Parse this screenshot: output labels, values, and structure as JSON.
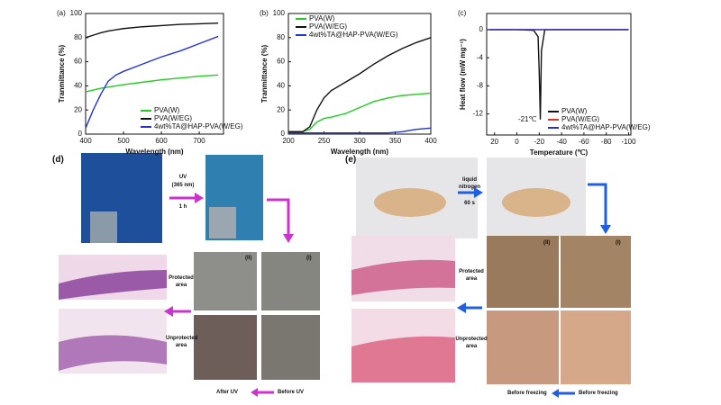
{
  "chart_data": [
    {
      "type": "line",
      "label": "(a)",
      "xlabel": "Wavelength (nm)",
      "ylabel": "Tranmittance (%)",
      "x": [
        400,
        420,
        440,
        460,
        480,
        500,
        550,
        600,
        650,
        700,
        750
      ],
      "series": [
        {
          "name": "PVA(W)",
          "color": "#22cc22",
          "values": [
            35,
            36.5,
            38,
            39,
            40,
            41,
            43,
            45,
            46.5,
            48,
            49
          ]
        },
        {
          "name": "PVA(W/EG)",
          "color": "#111111",
          "values": [
            80,
            82,
            84,
            85.5,
            86.5,
            87.5,
            89,
            90,
            91,
            91.5,
            92
          ]
        },
        {
          "name": "4wt%TA@HAP-PVA(W/EG)",
          "color": "#2233cc",
          "values": [
            5,
            20,
            33,
            44,
            49,
            52,
            58,
            64,
            69,
            75,
            81
          ]
        }
      ],
      "xlim": [
        400,
        764
      ],
      "ylim": [
        0,
        100
      ],
      "xticks": [
        400,
        500,
        600,
        700
      ],
      "yticks": [
        0,
        20,
        40,
        60,
        80,
        100
      ],
      "legend": "bottom-right"
    },
    {
      "type": "line",
      "label": "(b)",
      "xlabel": "Wavelength (nm)",
      "ylabel": "Tranmittance (%)",
      "x": [
        200,
        210,
        220,
        230,
        240,
        250,
        260,
        280,
        300,
        320,
        340,
        360,
        380,
        400
      ],
      "series": [
        {
          "name": "PVA(W)",
          "color": "#22cc22",
          "values": [
            2,
            2,
            2,
            4,
            10,
            13,
            14,
            17,
            22,
            27,
            30,
            32,
            33,
            34
          ]
        },
        {
          "name": "PVA(W/EG)",
          "color": "#111111",
          "values": [
            2,
            2,
            2,
            6,
            20,
            30,
            36,
            43,
            50,
            58,
            65,
            71,
            76,
            80
          ]
        },
        {
          "name": "4wt%TA@HAP-PVA(W/EG)",
          "color": "#2233cc",
          "values": [
            1,
            1,
            1,
            1,
            1,
            1,
            1,
            1,
            1,
            1,
            1,
            2,
            4,
            5
          ]
        }
      ],
      "xlim": [
        200,
        400
      ],
      "ylim": [
        0,
        100
      ],
      "xticks": [
        200,
        250,
        300,
        350,
        400
      ],
      "yticks": [
        0,
        20,
        40,
        60,
        80,
        100
      ],
      "legend": "top-left"
    },
    {
      "type": "line",
      "label": "(c)",
      "xlabel": "Temperature (℃)",
      "ylabel": "Heat flow (mW mg⁻¹)",
      "annotation": "-21℃",
      "x": [
        25,
        0,
        -15,
        -19,
        -20,
        -21,
        -22,
        -25,
        -50,
        -100
      ],
      "series": [
        {
          "name": "PVA(W)",
          "color": "#111111",
          "values": [
            0,
            0,
            -0.1,
            -1,
            -6,
            -12.8,
            -3,
            0,
            0,
            0
          ]
        },
        {
          "name": "PVA(W/EG)",
          "color": "#e03020",
          "values": [
            0,
            0,
            0,
            0,
            0,
            0,
            0,
            0,
            0,
            0
          ]
        },
        {
          "name": "4wt%TA@HAP-PVA(W/EG)",
          "color": "#2233cc",
          "values": [
            0,
            0,
            0,
            0,
            0,
            0,
            0,
            0,
            0,
            0
          ]
        }
      ],
      "xlim": [
        27,
        -102
      ],
      "ylim": [
        -15,
        2.3
      ],
      "xticks": [
        20,
        0,
        -20,
        -40,
        -60,
        -80,
        -100
      ],
      "yticks": [
        0,
        -4,
        -8,
        -12
      ],
      "legend": "bottom-right"
    }
  ],
  "panel_d": {
    "label": "(d)",
    "uv": "UV",
    "uv_wavelength": "(365 nm)",
    "uv_time": "1 h",
    "ii": "(II)",
    "i": "(I)",
    "protected": "Protected area",
    "unprotected": "Unprotected area",
    "after": "After UV",
    "before": "Before UV"
  },
  "panel_e": {
    "label": "(e)",
    "agent": "liquid nitrogen",
    "time": "60 s",
    "ii": "(II)",
    "i": "(I)",
    "protected": "Protected area",
    "unprotected": "Unprotected area",
    "before_left": "Before freezing",
    "before_right": "Before freezing"
  }
}
